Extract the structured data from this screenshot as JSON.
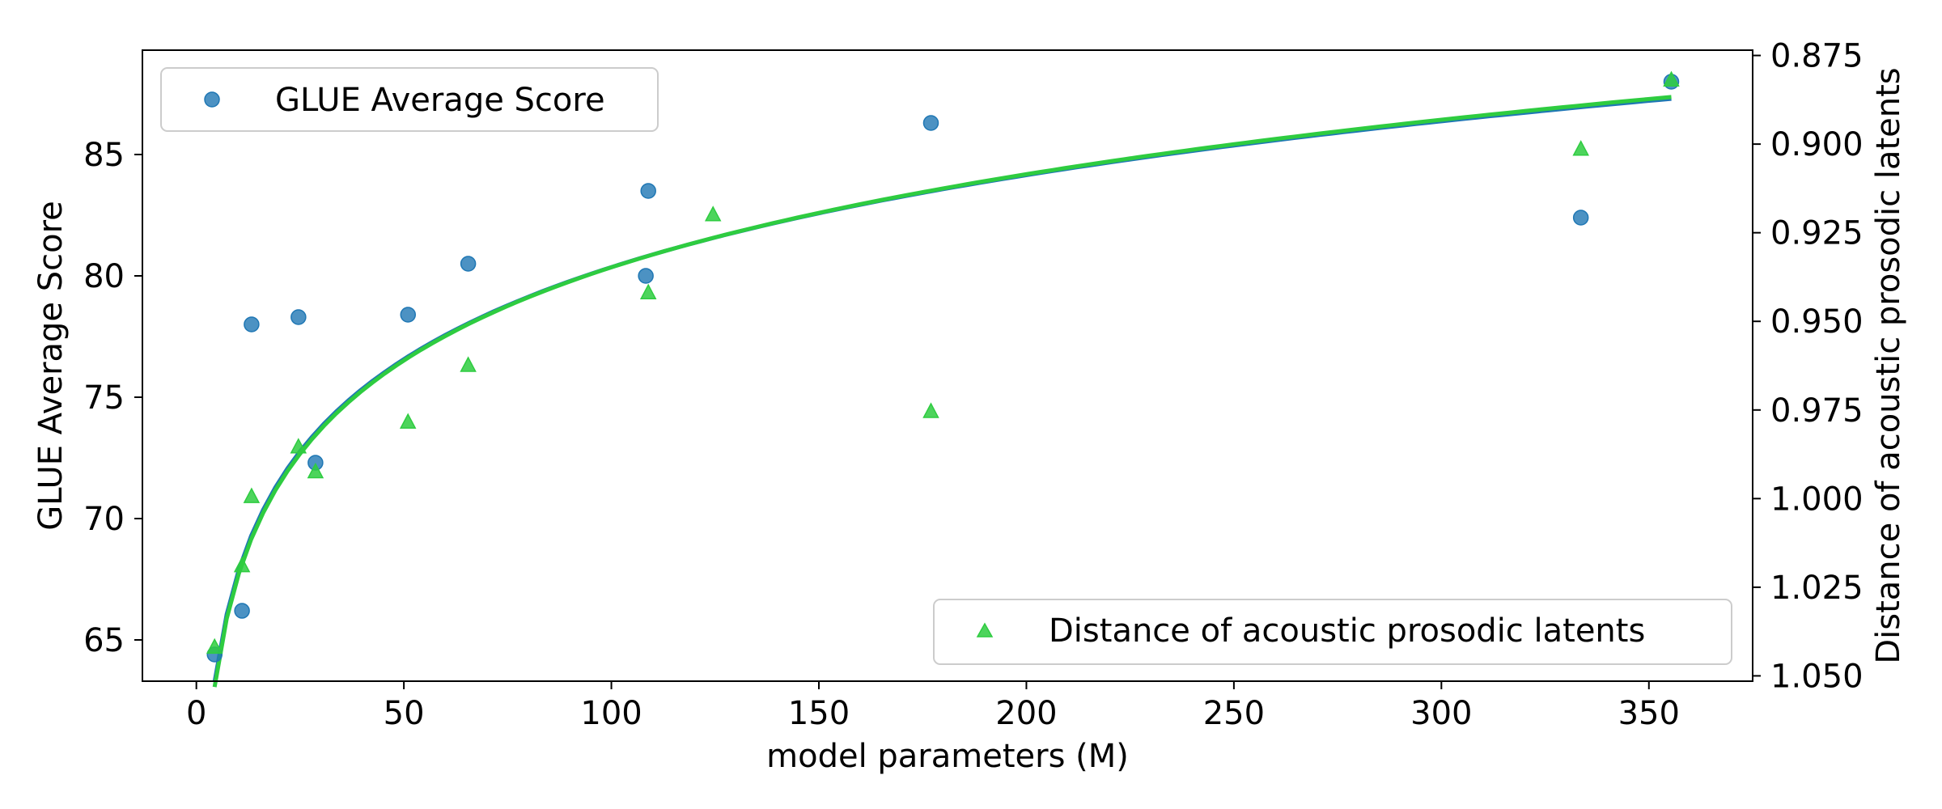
{
  "chart_data": {
    "type": "scatter",
    "xlabel": "model parameters (M)",
    "ylabel": "GLUE Average Score",
    "y2label": "Distance of acoustic prosodic latents",
    "xlim": [
      -13,
      375
    ],
    "xticks": [
      0,
      50,
      100,
      150,
      200,
      250,
      300,
      350
    ],
    "ylim": [
      63.3,
      89.3
    ],
    "yticks": [
      65,
      70,
      75,
      80,
      85
    ],
    "y2lim": [
      1.0515,
      0.8735
    ],
    "y2ticks": [
      0.875,
      0.9,
      0.925,
      0.95,
      0.975,
      1.0,
      1.025,
      1.05
    ],
    "y2_inverted": true,
    "legend_positions": [
      "top-left",
      "bottom-right"
    ],
    "grid": false,
    "series": [
      {
        "name": "GLUE Average Score",
        "axis": "left",
        "marker": "circle",
        "color": "#1f77b4",
        "x": [
          4.4,
          11,
          13.3,
          24.6,
          28.7,
          51,
          65.5,
          108.3,
          108.9,
          177,
          333.6,
          355.4
        ],
        "y": [
          64.4,
          66.2,
          78.0,
          78.3,
          72.3,
          78.4,
          80.5,
          80.0,
          83.5,
          86.3,
          82.4,
          88.0
        ],
        "fit": {
          "a": 55.17,
          "b": 5.47
        }
      },
      {
        "name": "Distance of acoustic prosodic latents",
        "axis": "right",
        "marker": "triangle",
        "color": "#2ecc40",
        "x": [
          4.4,
          11,
          13.3,
          24.6,
          28.7,
          51,
          65.5,
          108.9,
          124.5,
          177,
          333.6,
          355.4
        ],
        "y": [
          1.042,
          1.019,
          0.9995,
          0.9855,
          0.9925,
          0.9785,
          0.9625,
          0.942,
          0.92,
          0.9755,
          0.9015,
          0.882
        ],
        "fit": {
          "a": 1.1093,
          "b": -0.0379
        }
      }
    ]
  }
}
